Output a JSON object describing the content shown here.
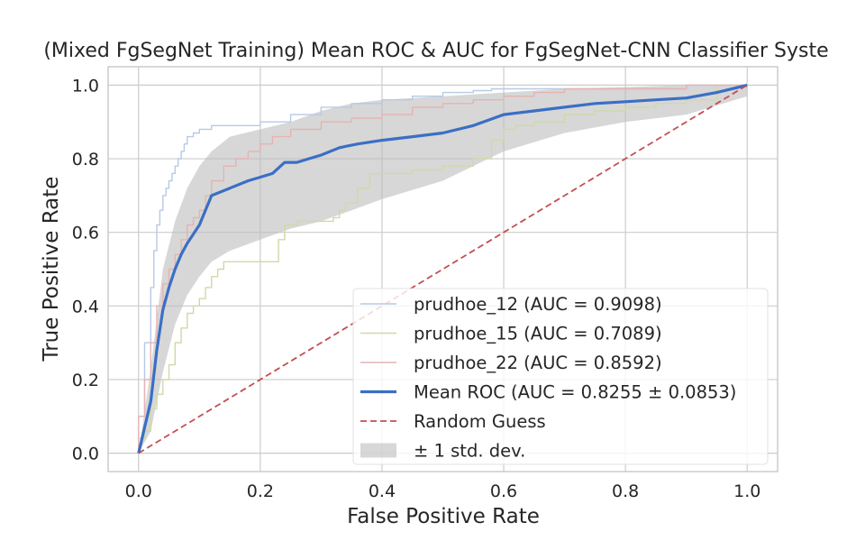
{
  "chart_data": {
    "type": "line",
    "title": "(Mixed FgSegNet Training) Mean ROC & AUC for FgSegNet-CNN Classifier Syste",
    "xlabel": "False Positive Rate",
    "ylabel": "True Positive Rate",
    "xlim": [
      -0.05,
      1.05
    ],
    "ylim": [
      -0.05,
      1.05
    ],
    "xticks": [
      "0.0",
      "0.2",
      "0.4",
      "0.6",
      "0.8",
      "1.0"
    ],
    "yticks": [
      "0.0",
      "0.2",
      "0.4",
      "0.6",
      "0.8",
      "1.0"
    ],
    "grid": true,
    "legend_position": "lower-right",
    "series": [
      {
        "name": "prudhoe_12 (AUC = 0.9098)",
        "color": "#b7c9e6",
        "style": "solid",
        "x": [
          0.0,
          0.01,
          0.02,
          0.025,
          0.03,
          0.035,
          0.04,
          0.045,
          0.05,
          0.055,
          0.06,
          0.065,
          0.07,
          0.075,
          0.08,
          0.09,
          0.1,
          0.11,
          0.12,
          0.14,
          0.16,
          0.18,
          0.2,
          0.25,
          0.3,
          0.35,
          0.4,
          0.45,
          0.5,
          0.55,
          0.58,
          0.6,
          0.65,
          0.7,
          0.8,
          0.9,
          1.0
        ],
        "y": [
          0.0,
          0.1,
          0.3,
          0.45,
          0.55,
          0.62,
          0.66,
          0.7,
          0.72,
          0.74,
          0.76,
          0.78,
          0.8,
          0.82,
          0.84,
          0.86,
          0.87,
          0.88,
          0.88,
          0.89,
          0.89,
          0.89,
          0.89,
          0.9,
          0.92,
          0.94,
          0.95,
          0.96,
          0.97,
          0.98,
          0.985,
          0.99,
          0.99,
          0.99,
          0.99,
          0.99,
          1.0
        ]
      },
      {
        "name": "prudhoe_15 (AUC = 0.7089)",
        "color": "#cfd9a8",
        "style": "solid",
        "x": [
          0.0,
          0.01,
          0.02,
          0.03,
          0.04,
          0.05,
          0.06,
          0.07,
          0.08,
          0.09,
          0.1,
          0.11,
          0.12,
          0.13,
          0.14,
          0.16,
          0.2,
          0.23,
          0.24,
          0.26,
          0.28,
          0.3,
          0.32,
          0.33,
          0.34,
          0.36,
          0.38,
          0.4,
          0.42,
          0.45,
          0.5,
          0.55,
          0.58,
          0.6,
          0.62,
          0.65,
          0.7,
          0.75,
          0.8,
          0.85,
          0.9,
          0.95,
          1.0
        ],
        "y": [
          0.0,
          0.04,
          0.06,
          0.12,
          0.16,
          0.2,
          0.24,
          0.3,
          0.34,
          0.38,
          0.4,
          0.42,
          0.45,
          0.48,
          0.5,
          0.52,
          0.52,
          0.52,
          0.58,
          0.62,
          0.63,
          0.63,
          0.63,
          0.64,
          0.66,
          0.68,
          0.72,
          0.76,
          0.76,
          0.76,
          0.77,
          0.78,
          0.8,
          0.85,
          0.88,
          0.89,
          0.9,
          0.92,
          0.93,
          0.94,
          0.95,
          0.96,
          1.0
        ]
      },
      {
        "name": "prudhoe_22 (AUC = 0.8592)",
        "color": "#e6b3b3",
        "style": "solid",
        "x": [
          0.0,
          0.01,
          0.02,
          0.03,
          0.04,
          0.05,
          0.06,
          0.07,
          0.08,
          0.09,
          0.1,
          0.11,
          0.12,
          0.14,
          0.16,
          0.18,
          0.2,
          0.22,
          0.25,
          0.28,
          0.3,
          0.35,
          0.4,
          0.45,
          0.5,
          0.55,
          0.6,
          0.65,
          0.7,
          0.75,
          0.8,
          0.9,
          1.0
        ],
        "y": [
          0.0,
          0.1,
          0.2,
          0.3,
          0.4,
          0.46,
          0.5,
          0.54,
          0.58,
          0.62,
          0.64,
          0.66,
          0.7,
          0.74,
          0.78,
          0.8,
          0.82,
          0.84,
          0.86,
          0.88,
          0.88,
          0.9,
          0.91,
          0.92,
          0.94,
          0.95,
          0.96,
          0.97,
          0.98,
          0.99,
          0.99,
          0.99,
          1.0
        ]
      },
      {
        "name": "Mean ROC (AUC = 0.8255 ± 0.0853)",
        "color": "#3a6fc4",
        "style": "solid",
        "x": [
          0.0,
          0.01,
          0.02,
          0.03,
          0.04,
          0.05,
          0.06,
          0.07,
          0.08,
          0.1,
          0.12,
          0.15,
          0.18,
          0.2,
          0.22,
          0.24,
          0.26,
          0.28,
          0.3,
          0.33,
          0.36,
          0.4,
          0.45,
          0.5,
          0.55,
          0.6,
          0.65,
          0.7,
          0.75,
          0.8,
          0.85,
          0.9,
          0.95,
          1.0
        ],
        "y": [
          0.0,
          0.07,
          0.14,
          0.28,
          0.39,
          0.45,
          0.5,
          0.54,
          0.57,
          0.62,
          0.7,
          0.72,
          0.74,
          0.75,
          0.76,
          0.79,
          0.79,
          0.8,
          0.81,
          0.83,
          0.84,
          0.85,
          0.86,
          0.87,
          0.89,
          0.92,
          0.93,
          0.94,
          0.95,
          0.955,
          0.96,
          0.965,
          0.98,
          1.0
        ]
      },
      {
        "name": "Random Guess",
        "color": "#c44e52",
        "style": "dashed",
        "x": [
          0.0,
          1.0
        ],
        "y": [
          0.0,
          1.0
        ]
      }
    ],
    "band": {
      "name": "± 1 std. dev.",
      "color": "#bdbdbd",
      "x": [
        0.0,
        0.02,
        0.04,
        0.06,
        0.08,
        0.1,
        0.12,
        0.15,
        0.2,
        0.25,
        0.3,
        0.35,
        0.4,
        0.5,
        0.6,
        0.7,
        0.8,
        0.9,
        1.0
      ],
      "upper": [
        0.0,
        0.23,
        0.5,
        0.63,
        0.72,
        0.78,
        0.82,
        0.86,
        0.88,
        0.9,
        0.93,
        0.95,
        0.96,
        0.97,
        0.98,
        0.99,
        0.995,
        1.0,
        1.0
      ],
      "lower": [
        0.0,
        0.06,
        0.22,
        0.35,
        0.43,
        0.48,
        0.52,
        0.55,
        0.58,
        0.61,
        0.63,
        0.66,
        0.69,
        0.74,
        0.82,
        0.87,
        0.9,
        0.92,
        0.97
      ]
    }
  }
}
